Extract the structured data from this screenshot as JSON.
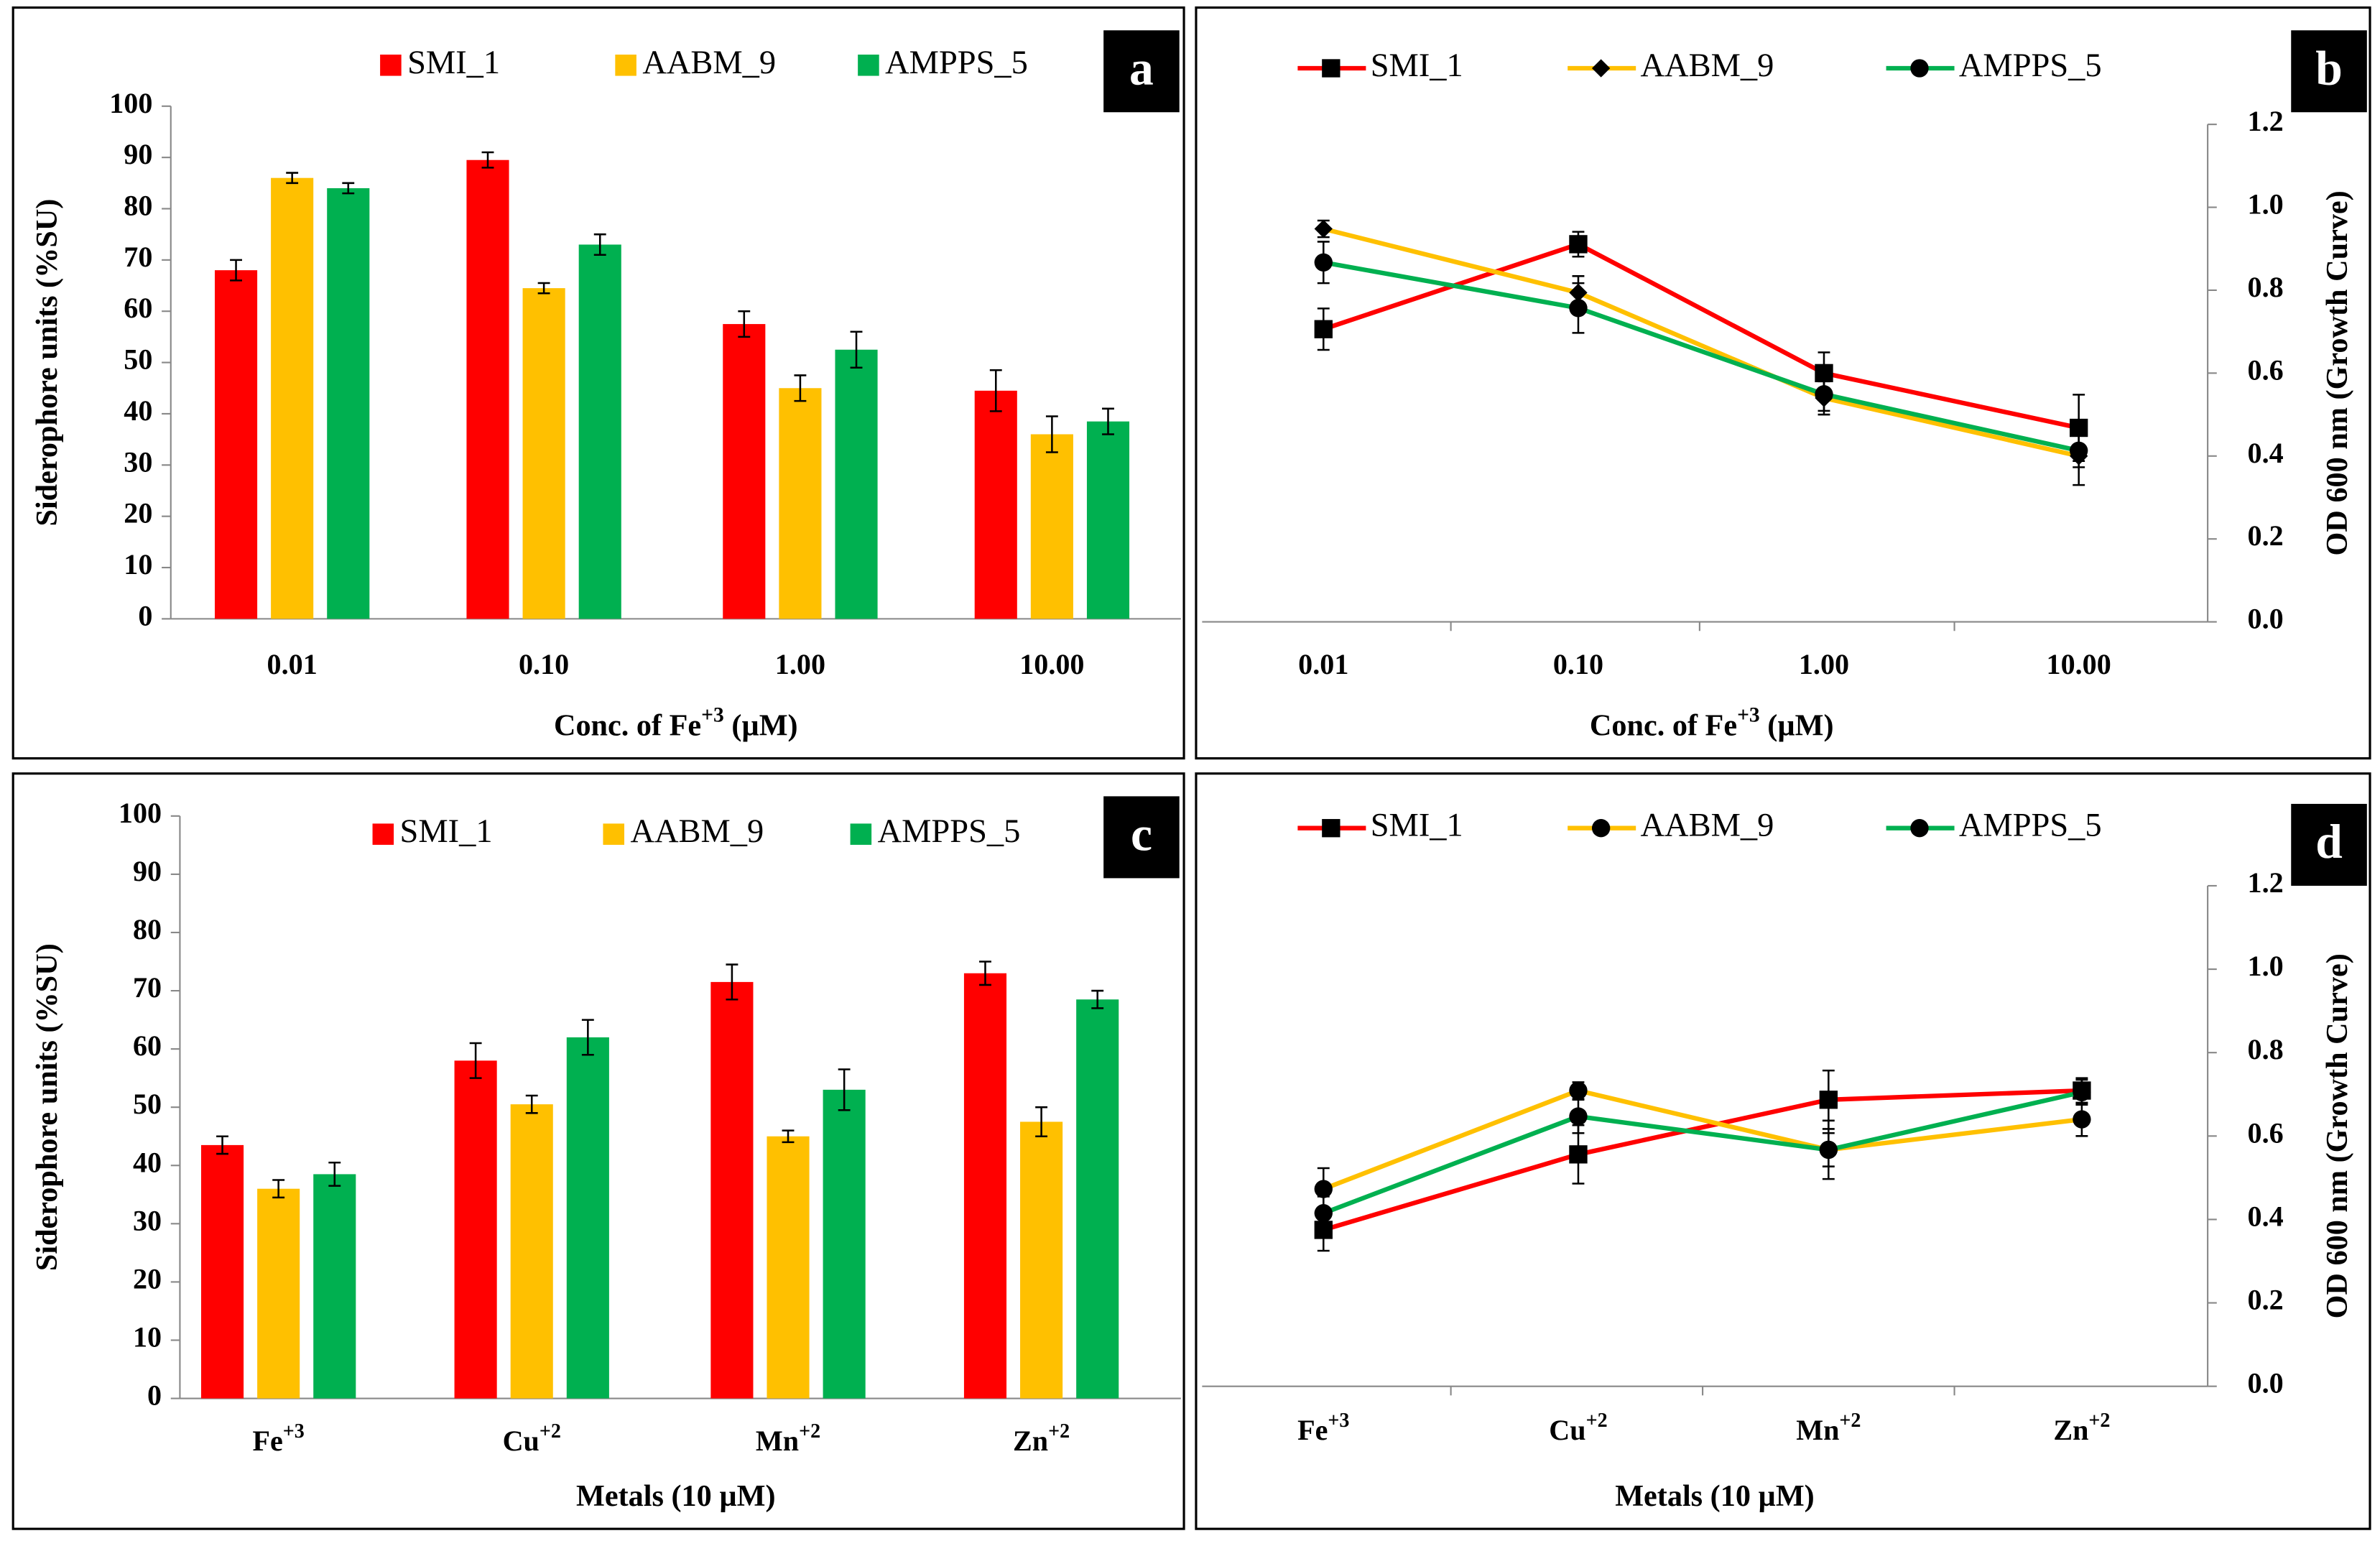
{
  "chart_data": [
    {
      "type": "bar",
      "panel_label": "a",
      "x_label": "Conc. of Fe+3 (µM)",
      "y_label": "Siderophore units (%SU)",
      "categories": [
        "0.01",
        "0.10",
        "1.00",
        "10.00"
      ],
      "ylim": [
        0,
        100
      ],
      "yticks": [
        0,
        10,
        20,
        30,
        40,
        50,
        60,
        70,
        80,
        90,
        100
      ],
      "y_axis_side": "left",
      "legend": "top",
      "series": [
        {
          "name": "SMI_1",
          "color": "#ff0000",
          "values": [
            68,
            89.5,
            57.5,
            44.5
          ],
          "errors": [
            2,
            1.5,
            2.5,
            4
          ]
        },
        {
          "name": "AABM_9",
          "color": "#ffc000",
          "values": [
            86,
            64.5,
            45,
            36
          ],
          "errors": [
            1,
            1,
            2.5,
            3.5
          ]
        },
        {
          "name": "AMPPS_5",
          "color": "#00b050",
          "values": [
            84,
            73,
            52.5,
            38.5
          ],
          "errors": [
            1,
            2,
            3.5,
            2.5
          ]
        }
      ]
    },
    {
      "type": "line",
      "panel_label": "b",
      "x_label": "Conc. of Fe+3 (µM)",
      "y_label": "OD 600 nm (Growth Curve)",
      "categories": [
        "0.01",
        "0.10",
        "1.00",
        "10.00"
      ],
      "ylim": [
        0,
        1.2
      ],
      "y_axis_side": "right",
      "legend": "top",
      "yticks": [
        {
          "value": 0,
          "label": "0.0"
        },
        {
          "value": 0.2,
          "label": "0.2"
        },
        {
          "value": 0.4,
          "label": "0.4"
        },
        {
          "value": 0.6,
          "label": "0.6"
        },
        {
          "value": 0.8,
          "label": "0.8"
        },
        {
          "value": 1,
          "label": "1.0"
        },
        {
          "value": 1.2,
          "label": "1.2"
        }
      ],
      "series": [
        {
          "name": "SMI_1",
          "color": "#ff0000",
          "marker": "square",
          "values": [
            0.706,
            0.911,
            0.6,
            0.468
          ],
          "errors": [
            0.05,
            0.03,
            0.05,
            0.08
          ]
        },
        {
          "name": "AABM_9",
          "color": "#ffc000",
          "marker": "diamond",
          "values": [
            0.948,
            0.794,
            0.54,
            0.4
          ],
          "errors": [
            0.02,
            0.04,
            0.04,
            0.07
          ]
        },
        {
          "name": "AMPPS_5",
          "color": "#00b050",
          "marker": "circle",
          "values": [
            0.867,
            0.757,
            0.549,
            0.413
          ],
          "errors": [
            0.05,
            0.06,
            0.04,
            0.04
          ]
        }
      ]
    },
    {
      "type": "bar",
      "panel_label": "c",
      "x_label": "Metals (10 µM)",
      "y_label": "Siderophore units (%SU)",
      "categories": [
        "Fe+3",
        "Cu+2",
        "Mn+2",
        "Zn+2"
      ],
      "ylim": [
        0,
        100
      ],
      "yticks": [
        0,
        10,
        20,
        30,
        40,
        50,
        60,
        70,
        80,
        90,
        100
      ],
      "y_axis_side": "left",
      "legend": "top",
      "series": [
        {
          "name": "SMI_1",
          "color": "#ff0000",
          "values": [
            43.5,
            58,
            71.5,
            73
          ],
          "errors": [
            1.5,
            3,
            3,
            2
          ]
        },
        {
          "name": "AABM_9",
          "color": "#ffc000",
          "values": [
            36,
            50.5,
            45,
            47.5
          ],
          "errors": [
            1.5,
            1.5,
            1,
            2.5
          ]
        },
        {
          "name": "AMPPS_5",
          "color": "#00b050",
          "values": [
            38.5,
            62,
            53,
            68.5
          ],
          "errors": [
            2,
            3,
            3.5,
            1.5
          ]
        }
      ]
    },
    {
      "type": "line",
      "panel_label": "d",
      "x_label": "Metals (10 µM)",
      "y_label": "OD 600 nm (Growth Curve)",
      "categories": [
        "Fe+3",
        "Cu+2",
        "Mn+2",
        "Zn+2"
      ],
      "ylim": [
        0,
        1.2
      ],
      "y_axis_side": "right",
      "legend": "top",
      "yticks": [
        {
          "value": 0,
          "label": "0.0"
        },
        {
          "value": 0.2,
          "label": "0.2"
        },
        {
          "value": 0.4,
          "label": "0.4"
        },
        {
          "value": 0.6,
          "label": "0.6"
        },
        {
          "value": 0.8,
          "label": "0.8"
        },
        {
          "value": 1,
          "label": "1.0"
        },
        {
          "value": 1.2,
          "label": "1.2"
        }
      ],
      "series": [
        {
          "name": "SMI_1",
          "color": "#ff0000",
          "marker": "square",
          "values": [
            0.375,
            0.556,
            0.687,
            0.709
          ],
          "errors": [
            0.05,
            0.07,
            0.07,
            0.03
          ]
        },
        {
          "name": "AABM_9",
          "color": "#ffc000",
          "marker": "circle",
          "values": [
            0.473,
            0.709,
            0.567,
            0.64
          ],
          "errors": [
            0.05,
            0.02,
            0.07,
            0.04
          ]
        },
        {
          "name": "AMPPS_5",
          "color": "#00b050",
          "marker": "circle",
          "values": [
            0.415,
            0.647,
            0.567,
            0.705
          ],
          "errors": [
            0.04,
            0.04,
            0.04,
            0.03
          ]
        }
      ]
    }
  ]
}
